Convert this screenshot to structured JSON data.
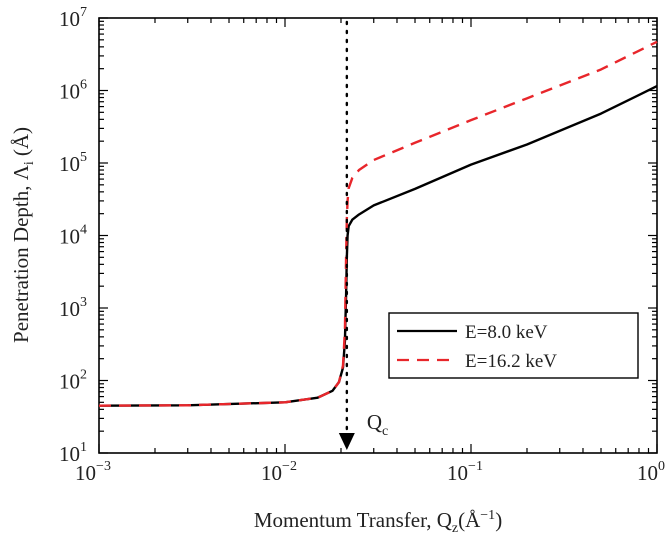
{
  "chart_data": {
    "type": "line",
    "xscale": "log",
    "yscale": "log",
    "xlim": [
      0.001,
      1
    ],
    "ylim": [
      10,
      10000000
    ],
    "grid": false,
    "xlabel": "Momentum Transfer, Q",
    "xlabel_sub": "z",
    "xlabel_unit": "(Å",
    "xlabel_unit_sup": "−1",
    "xlabel_close": ")",
    "ylabel": "Penetration Depth, Λ",
    "ylabel_sub": "i",
    "ylabel_unit": "(Å)",
    "x_ticks": [
      {
        "value": 0.001,
        "base": "10",
        "exp": "−3"
      },
      {
        "value": 0.01,
        "base": "10",
        "exp": "−2"
      },
      {
        "value": 0.1,
        "base": "10",
        "exp": "−1"
      },
      {
        "value": 1,
        "base": "10",
        "exp": "0"
      }
    ],
    "y_ticks": [
      {
        "value": 10,
        "base": "10",
        "exp": "1"
      },
      {
        "value": 100,
        "base": "10",
        "exp": "2"
      },
      {
        "value": 1000,
        "base": "10",
        "exp": "3"
      },
      {
        "value": 10000,
        "base": "10",
        "exp": "4"
      },
      {
        "value": 100000,
        "base": "10",
        "exp": "5"
      },
      {
        "value": 1000000,
        "base": "10",
        "exp": "6"
      },
      {
        "value": 10000000,
        "base": "10",
        "exp": "7"
      }
    ],
    "series": [
      {
        "name": "E=8.0 keV",
        "color": "#000000",
        "dash": "solid",
        "x": [
          0.001,
          0.003,
          0.01,
          0.015,
          0.018,
          0.0195,
          0.0205,
          0.021,
          0.0213,
          0.0215,
          0.0217,
          0.022,
          0.023,
          0.025,
          0.03,
          0.05,
          0.1,
          0.2,
          0.5,
          1.0
        ],
        "y": [
          45,
          45.5,
          50,
          58,
          72,
          95,
          150,
          350,
          1500,
          5000,
          10000,
          13500,
          16500,
          19500,
          26000,
          44000,
          95000,
          180000,
          480000,
          1150000
        ]
      },
      {
        "name": "E=16.2 keV",
        "color": "#e8262b",
        "dash": "dashed",
        "x": [
          0.001,
          0.003,
          0.01,
          0.015,
          0.018,
          0.0195,
          0.0205,
          0.021,
          0.0213,
          0.0215,
          0.0217,
          0.022,
          0.023,
          0.025,
          0.03,
          0.05,
          0.1,
          0.2,
          0.5,
          1.0
        ],
        "y": [
          45,
          45.5,
          50,
          58,
          72,
          95,
          160,
          500,
          5000,
          17000,
          30000,
          45000,
          62000,
          80000,
          110000,
          190000,
          390000,
          780000,
          1950000,
          4700000
        ]
      }
    ],
    "annotations": [
      {
        "kind": "vline",
        "x": 0.0215,
        "style": "dotted",
        "label": "Q",
        "label_sub": "c"
      }
    ],
    "legend": {
      "placement": "lower-right"
    }
  }
}
